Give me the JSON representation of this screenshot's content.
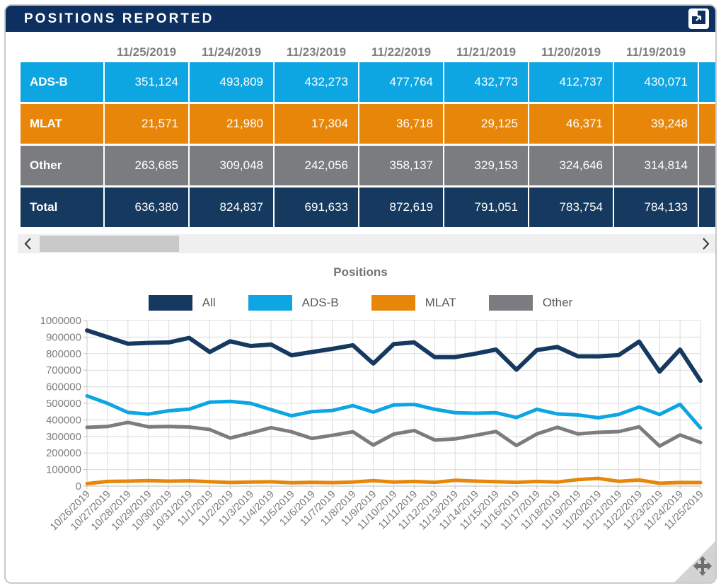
{
  "panel": {
    "title": "POSITIONS REPORTED"
  },
  "icons": {
    "titlebar": "popout-icon",
    "scroll_left": "chevron-left-icon",
    "scroll_right": "chevron-right-icon",
    "corner": "move-icon"
  },
  "colors": {
    "navy": "#16395f",
    "titlebar_navy": "#0e3060",
    "blue": "#0da5e2",
    "orange": "#e8860a",
    "gray": "#7a7c80"
  },
  "table": {
    "columns": [
      "11/25/2019",
      "11/24/2019",
      "11/23/2019",
      "11/22/2019",
      "11/21/2019",
      "11/20/2019",
      "11/19/2019"
    ],
    "rows": [
      {
        "label": "ADS-B",
        "color": "#0da5e2",
        "values": [
          "351,124",
          "493,809",
          "432,273",
          "477,764",
          "432,773",
          "412,737",
          "430,071"
        ]
      },
      {
        "label": "MLAT",
        "color": "#e8860a",
        "values": [
          "21,571",
          "21,980",
          "17,304",
          "36,718",
          "29,125",
          "46,371",
          "39,248"
        ]
      },
      {
        "label": "Other",
        "color": "#7a7c80",
        "values": [
          "263,685",
          "309,048",
          "242,056",
          "358,137",
          "329,153",
          "324,646",
          "314,814"
        ]
      },
      {
        "label": "Total",
        "color": "#16395f",
        "values": [
          "636,380",
          "824,837",
          "691,633",
          "872,619",
          "791,051",
          "783,754",
          "784,133"
        ]
      }
    ]
  },
  "chart_data": {
    "type": "line",
    "title": "Positions",
    "legend_position": "top",
    "grid": true,
    "ylim": [
      0,
      1000000
    ],
    "ytick_step": 100000,
    "x": [
      "10/26/2019",
      "10/27/2019",
      "10/28/2019",
      "10/29/2019",
      "10/30/2019",
      "10/31/2019",
      "11/1/2019",
      "11/2/2019",
      "11/3/2019",
      "11/4/2019",
      "11/5/2019",
      "11/6/2019",
      "11/7/2019",
      "11/8/2019",
      "11/9/2019",
      "11/10/2019",
      "11/11/2019",
      "11/12/2019",
      "11/13/2019",
      "11/14/2019",
      "11/15/2019",
      "11/16/2019",
      "11/17/2019",
      "11/18/2019",
      "11/19/2019",
      "11/20/2019",
      "11/21/2019",
      "11/22/2019",
      "11/23/2019",
      "11/24/2019",
      "11/25/2019"
    ],
    "series": [
      {
        "name": "All",
        "color": "#16395f",
        "values": [
          940000,
          900000,
          860000,
          865000,
          868000,
          895000,
          810000,
          875000,
          846000,
          855000,
          790000,
          810000,
          829000,
          851000,
          740000,
          858000,
          868000,
          779000,
          779000,
          800000,
          825000,
          703000,
          822000,
          840000,
          784133,
          783754,
          791051,
          872619,
          691633,
          824837,
          636380
        ]
      },
      {
        "name": "ADS-B",
        "color": "#0da5e2",
        "values": [
          545000,
          500000,
          445000,
          435000,
          455000,
          465000,
          507000,
          512000,
          500000,
          462000,
          425000,
          450000,
          457000,
          486000,
          447000,
          490000,
          493000,
          464000,
          443000,
          440000,
          443000,
          414000,
          464000,
          436000,
          430071,
          412737,
          432773,
          477764,
          432273,
          493809,
          351124
        ]
      },
      {
        "name": "MLAT",
        "color": "#e8860a",
        "values": [
          15000,
          28000,
          30000,
          33000,
          30000,
          32000,
          27000,
          22000,
          25000,
          26000,
          20000,
          23000,
          21000,
          25000,
          33000,
          25000,
          28000,
          23000,
          35000,
          30000,
          27000,
          23000,
          28000,
          25000,
          39248,
          46371,
          29125,
          36718,
          17304,
          21980,
          21571
        ]
      },
      {
        "name": "Other",
        "color": "#7a7c80",
        "values": [
          355000,
          360000,
          385000,
          358000,
          360000,
          357000,
          342000,
          290000,
          321000,
          353000,
          328000,
          288000,
          307000,
          328000,
          248000,
          314000,
          336000,
          278000,
          285000,
          307000,
          330000,
          245000,
          315000,
          355000,
          314814,
          324646,
          329153,
          358137,
          242056,
          309048,
          263685
        ]
      }
    ]
  }
}
